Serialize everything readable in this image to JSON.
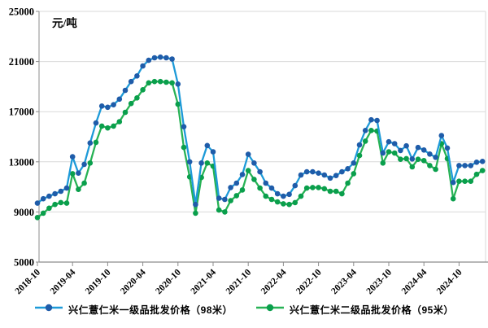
{
  "chart_data": {
    "type": "line",
    "title": "",
    "ylabel": "元/吨",
    "xlabel": "",
    "ylim": [
      5000,
      25000
    ],
    "yticks": [
      5000,
      9000,
      13000,
      17000,
      21000,
      25000
    ],
    "xtick_step": 6,
    "xtick_labels": [
      "2018-10",
      "2019-04",
      "2019-10",
      "2020-04",
      "2020-10",
      "2021-04",
      "2021-10",
      "2022-04",
      "2022-10",
      "2023-04",
      "2023-10",
      "2024-04",
      "2024-10"
    ],
    "grid": "horizontal",
    "legend_position": "bottom",
    "x": [
      "2018-10",
      "2018-11",
      "2018-12",
      "2019-01",
      "2019-02",
      "2019-03",
      "2019-04",
      "2019-05",
      "2019-06",
      "2019-07",
      "2019-08",
      "2019-09",
      "2019-10",
      "2019-11",
      "2019-12",
      "2020-01",
      "2020-02",
      "2020-03",
      "2020-04",
      "2020-05",
      "2020-06",
      "2020-07",
      "2020-08",
      "2020-09",
      "2020-10",
      "2020-11",
      "2020-12",
      "2021-01",
      "2021-02",
      "2021-03",
      "2021-04",
      "2021-05",
      "2021-06",
      "2021-07",
      "2021-08",
      "2021-09",
      "2021-10",
      "2021-11",
      "2021-12",
      "2022-01",
      "2022-02",
      "2022-03",
      "2022-04",
      "2022-05",
      "2022-06",
      "2022-07",
      "2022-08",
      "2022-09",
      "2022-10",
      "2022-11",
      "2022-12",
      "2023-01",
      "2023-02",
      "2023-03",
      "2023-04",
      "2023-05",
      "2023-06",
      "2023-07",
      "2023-08",
      "2023-09",
      "2023-10",
      "2023-11",
      "2023-12",
      "2024-01",
      "2024-02",
      "2024-03",
      "2024-04",
      "2024-05",
      "2024-06",
      "2024-07",
      "2024-08",
      "2024-09",
      "2024-10",
      "2024-11",
      "2024-12",
      "2025-01",
      "2025-02"
    ],
    "series": [
      {
        "name": "兴仁薏仁米一级品批发价格（98米）",
        "line_color": "#1d9ad8",
        "marker_color": "#1f5ca9",
        "values": [
          9700,
          10050,
          10250,
          10450,
          10650,
          10900,
          13400,
          12100,
          12800,
          14500,
          16100,
          17450,
          17350,
          17550,
          18000,
          18700,
          19400,
          19850,
          20650,
          21100,
          21300,
          21350,
          21300,
          21200,
          19200,
          15800,
          13000,
          9600,
          12900,
          14300,
          13800,
          10100,
          10000,
          10950,
          11300,
          11990,
          13600,
          12900,
          12200,
          11300,
          10900,
          10450,
          10250,
          10400,
          11100,
          11950,
          12200,
          12200,
          12100,
          11950,
          11700,
          11900,
          12200,
          12450,
          12900,
          14350,
          15500,
          16350,
          16300,
          13700,
          14600,
          14450,
          13900,
          14270,
          13230,
          14140,
          13940,
          13620,
          13360,
          15100,
          14100,
          11350,
          12700,
          12700,
          12700,
          12970,
          13030
        ]
      },
      {
        "name": "兴仁薏仁米二级品批发价格（95米）",
        "line_color": "#27b255",
        "marker_color": "#0a9f4c",
        "values": [
          8550,
          8900,
          9300,
          9600,
          9750,
          9700,
          12050,
          10800,
          11300,
          12900,
          14550,
          15850,
          15700,
          15850,
          16200,
          16950,
          17650,
          18100,
          18750,
          19300,
          19400,
          19400,
          19350,
          19300,
          17600,
          14150,
          11800,
          8900,
          11750,
          12900,
          12650,
          9150,
          9000,
          9900,
          10300,
          10750,
          12300,
          11600,
          10900,
          10250,
          10000,
          9800,
          9650,
          9600,
          9750,
          10250,
          10900,
          10950,
          10950,
          10850,
          10650,
          10650,
          10450,
          11300,
          12050,
          13500,
          14650,
          15500,
          15450,
          12900,
          13800,
          13700,
          13200,
          13250,
          12600,
          13200,
          13100,
          12700,
          12400,
          14450,
          13250,
          10050,
          11450,
          11450,
          11450,
          12000,
          12300
        ]
      }
    ],
    "axis_colors": {
      "gridline": "#d9d9d9",
      "axis_line": "#8c8c8c",
      "tick_label": "#000000"
    }
  }
}
